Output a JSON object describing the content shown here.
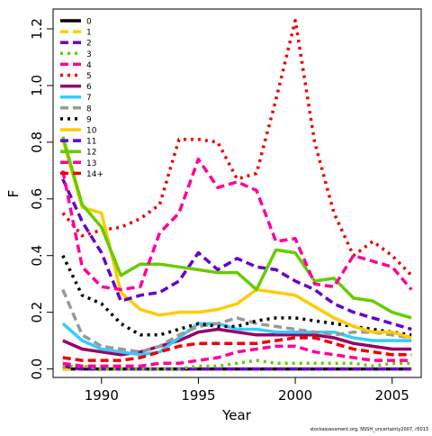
{
  "chart_data": {
    "type": "line",
    "title": "",
    "xlabel": "Year",
    "ylabel": "F",
    "xlim": [
      1987.5,
      2006.5
    ],
    "ylim": [
      -0.03,
      1.27
    ],
    "x_ticks": [
      1990,
      1995,
      2000,
      2005
    ],
    "y_ticks": [
      0.0,
      0.2,
      0.4,
      0.6,
      0.8,
      1.0,
      1.2
    ],
    "x_tick_labels": [
      "1990",
      "1995",
      "2000",
      "2005"
    ],
    "y_tick_labels": [
      "0.0",
      "0.2",
      "0.4",
      "0.6",
      "0.8",
      "1.0",
      "1.2"
    ],
    "grid": false,
    "legend_position": "top-left",
    "x": [
      1988,
      1989,
      1990,
      1991,
      1992,
      1993,
      1994,
      1995,
      1996,
      1997,
      1998,
      1999,
      2000,
      2001,
      2002,
      2003,
      2004,
      2005,
      2006
    ],
    "series": [
      {
        "name": "0",
        "color": "#000000",
        "dash": "solid",
        "values": [
          0.0,
          0.0,
          0.0,
          0.0,
          0.0,
          0.0,
          0.0,
          0.0,
          0.0,
          0.0,
          0.0,
          0.0,
          0.0,
          0.0,
          0.0,
          0.0,
          0.0,
          0.0,
          0.0
        ]
      },
      {
        "name": "1",
        "color": "#FFCC00",
        "dash": "dashed",
        "values": [
          0.0,
          0.0,
          0.0,
          0.0,
          0.0,
          0.0,
          0.0,
          0.0,
          0.0,
          0.0,
          0.0,
          0.0,
          0.0,
          0.0,
          0.0,
          0.0,
          0.0,
          0.0,
          0.0
        ]
      },
      {
        "name": "2",
        "color": "#6600CC",
        "dash": "dashed",
        "values": [
          0.01,
          0.0,
          0.0,
          0.0,
          0.0,
          0.0,
          0.0,
          0.0,
          0.0,
          0.0,
          0.0,
          0.0,
          0.0,
          0.0,
          0.0,
          0.0,
          0.0,
          0.0,
          0.0
        ]
      },
      {
        "name": "3",
        "color": "#66CC00",
        "dash": "dotted",
        "values": [
          0.01,
          0.01,
          0.0,
          0.0,
          0.0,
          0.0,
          0.0,
          0.01,
          0.01,
          0.02,
          0.03,
          0.02,
          0.02,
          0.02,
          0.02,
          0.02,
          0.01,
          0.02,
          0.02
        ]
      },
      {
        "name": "4",
        "color": "#FF0099",
        "dash": "dashed",
        "values": [
          0.02,
          0.01,
          0.01,
          0.01,
          0.01,
          0.02,
          0.02,
          0.03,
          0.04,
          0.06,
          0.07,
          0.08,
          0.08,
          0.06,
          0.05,
          0.04,
          0.03,
          0.03,
          0.03
        ]
      },
      {
        "name": "5",
        "color": "#EE0000",
        "dash": "dotted",
        "values": [
          0.55,
          0.47,
          0.49,
          0.5,
          0.53,
          0.58,
          0.81,
          0.81,
          0.8,
          0.67,
          0.69,
          0.95,
          1.23,
          0.8,
          0.55,
          0.4,
          0.45,
          0.4,
          0.33
        ]
      },
      {
        "name": "6",
        "color": "#990066",
        "dash": "solid",
        "values": [
          0.1,
          0.07,
          0.06,
          0.05,
          0.06,
          0.08,
          0.1,
          0.13,
          0.14,
          0.13,
          0.12,
          0.12,
          0.12,
          0.12,
          0.11,
          0.09,
          0.08,
          0.07,
          0.07
        ]
      },
      {
        "name": "7",
        "color": "#33CCFF",
        "dash": "solid",
        "values": [
          0.16,
          0.1,
          0.07,
          0.06,
          0.05,
          0.06,
          0.11,
          0.16,
          0.16,
          0.14,
          0.14,
          0.13,
          0.13,
          0.13,
          0.13,
          0.11,
          0.1,
          0.1,
          0.1
        ]
      },
      {
        "name": "8",
        "color": "#999999",
        "dash": "dashed",
        "values": [
          0.28,
          0.12,
          0.08,
          0.07,
          0.06,
          0.08,
          0.12,
          0.15,
          0.16,
          0.18,
          0.16,
          0.15,
          0.14,
          0.13,
          0.12,
          0.13,
          0.13,
          0.12,
          0.11
        ]
      },
      {
        "name": "9",
        "color": "#000000",
        "dash": "dotted",
        "values": [
          0.4,
          0.26,
          0.23,
          0.16,
          0.12,
          0.12,
          0.14,
          0.16,
          0.15,
          0.15,
          0.17,
          0.18,
          0.18,
          0.17,
          0.16,
          0.15,
          0.14,
          0.13,
          0.12
        ]
      },
      {
        "name": "10",
        "color": "#FFCC00",
        "dash": "solid",
        "values": [
          0.81,
          0.57,
          0.55,
          0.27,
          0.21,
          0.19,
          0.2,
          0.2,
          0.21,
          0.23,
          0.28,
          0.27,
          0.26,
          0.22,
          0.18,
          0.15,
          0.13,
          0.13,
          0.11
        ]
      },
      {
        "name": "11",
        "color": "#6600CC",
        "dash": "dashed",
        "values": [
          0.67,
          0.52,
          0.41,
          0.24,
          0.26,
          0.27,
          0.31,
          0.41,
          0.35,
          0.39,
          0.36,
          0.35,
          0.31,
          0.28,
          0.23,
          0.2,
          0.18,
          0.16,
          0.14
        ]
      },
      {
        "name": "12",
        "color": "#66CC00",
        "dash": "solid",
        "values": [
          0.82,
          0.58,
          0.5,
          0.33,
          0.37,
          0.37,
          0.36,
          0.35,
          0.34,
          0.34,
          0.28,
          0.42,
          0.41,
          0.31,
          0.32,
          0.25,
          0.24,
          0.2,
          0.18
        ]
      },
      {
        "name": "13",
        "color": "#FF0099",
        "dash": "dashed",
        "values": [
          0.7,
          0.36,
          0.29,
          0.28,
          0.29,
          0.48,
          0.55,
          0.74,
          0.64,
          0.66,
          0.63,
          0.45,
          0.46,
          0.3,
          0.29,
          0.4,
          0.38,
          0.36,
          0.28
        ]
      },
      {
        "name": "14+",
        "color": "#EE0000",
        "dash": "dashed",
        "values": [
          0.04,
          0.03,
          0.03,
          0.03,
          0.04,
          0.06,
          0.08,
          0.09,
          0.09,
          0.09,
          0.09,
          0.1,
          0.11,
          0.11,
          0.09,
          0.07,
          0.06,
          0.05,
          0.05
        ]
      }
    ]
  },
  "credit": "stockassessment.org, NSSH_uncertainty2007, r5013"
}
